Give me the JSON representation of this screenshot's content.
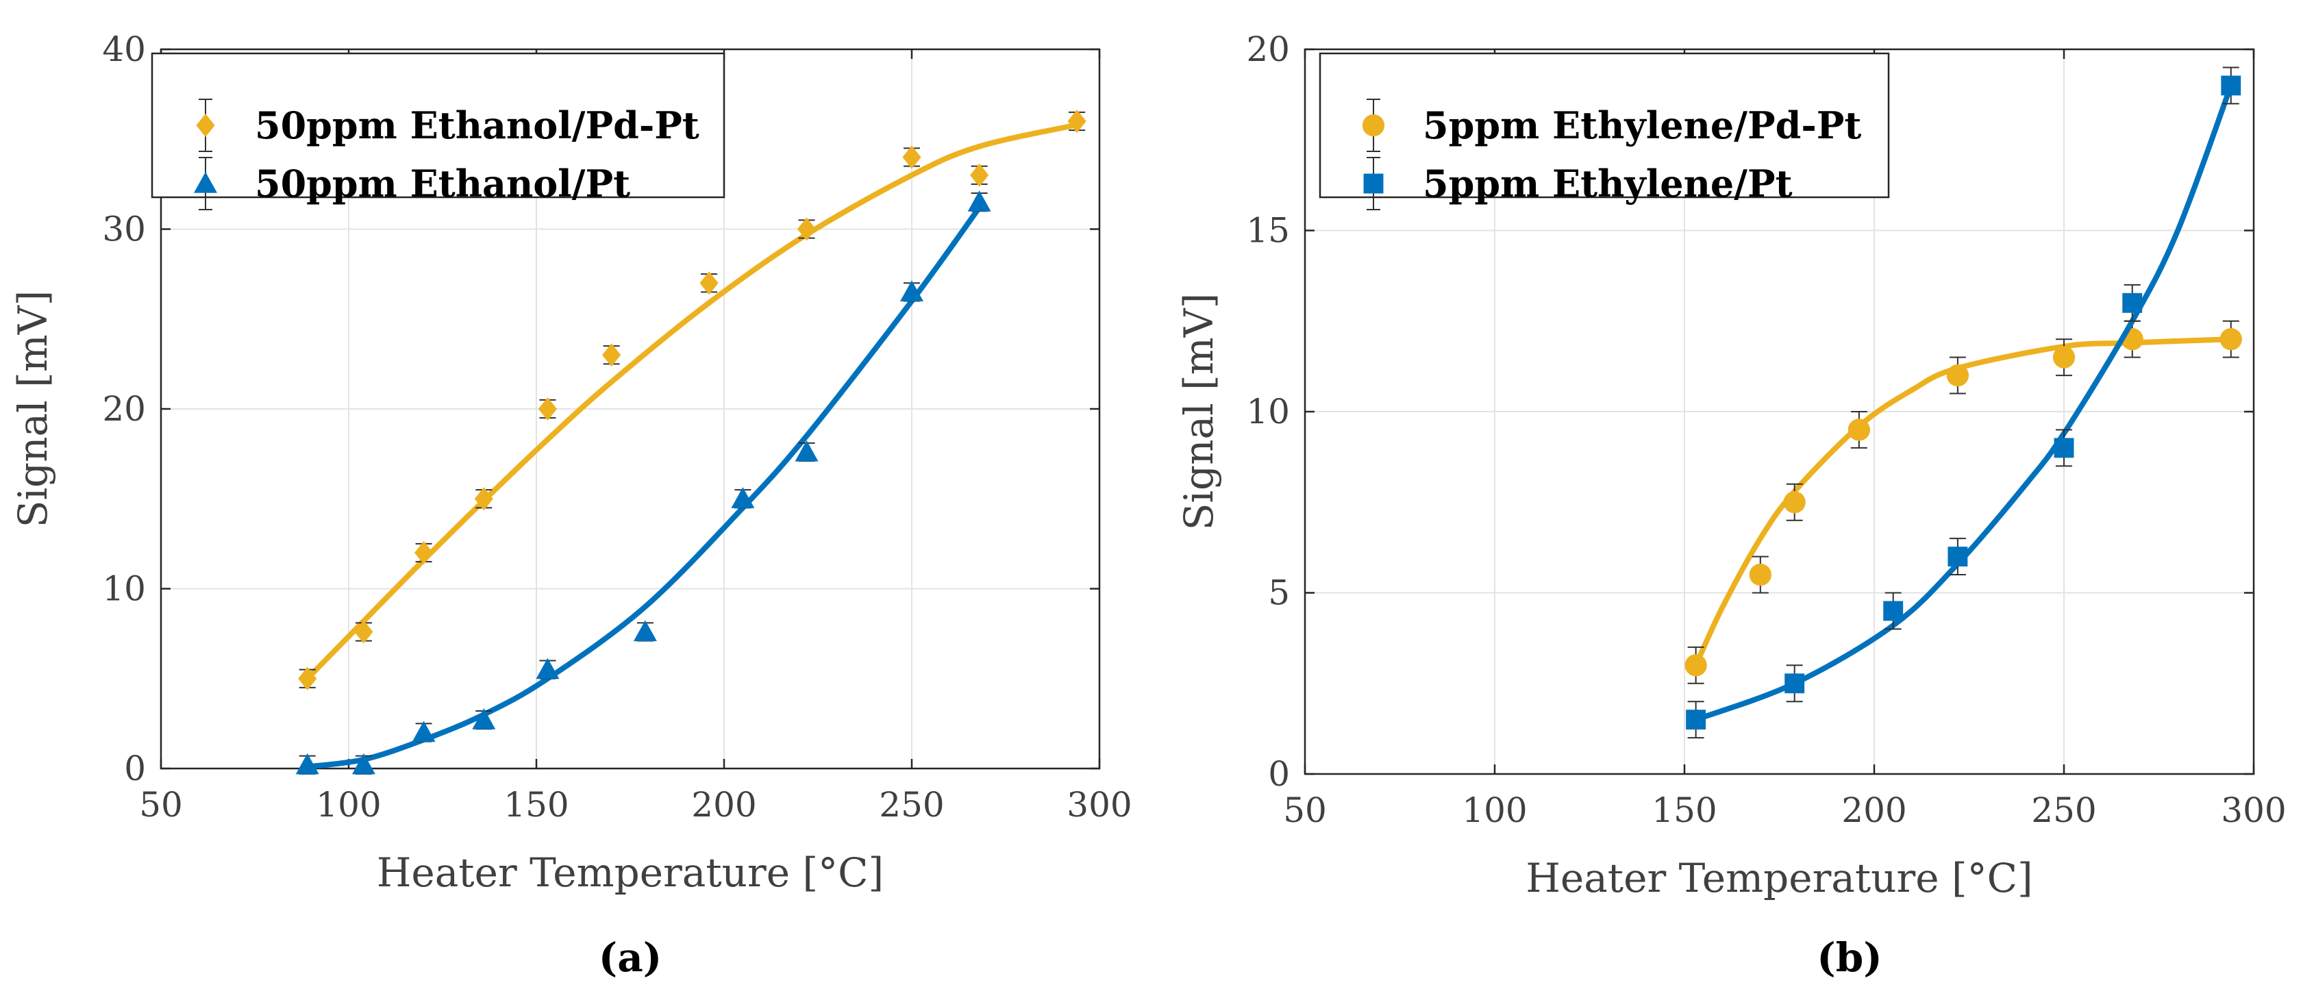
{
  "figure": {
    "panels": [
      {
        "legend": [
          {
            "label": "50ppm Ethanol/Pd-Pt",
            "color": "#EDB120",
            "marker": "diamond"
          },
          {
            "label": "50ppm Ethanol/Pt",
            "color": "#0072BD",
            "marker": "triangle"
          }
        ]
      },
      {
        "legend": [
          {
            "label": "5ppm Ethylene/Pd-Pt",
            "color": "#EDB120",
            "marker": "circle"
          },
          {
            "label": "5ppm Ethylene/Pt",
            "color": "#0072BD",
            "marker": "square"
          }
        ]
      }
    ]
  },
  "chart_data": [
    {
      "type": "scatter",
      "panel_label": "(a)",
      "xlabel": "Heater Temperature [°C]",
      "ylabel": "Signal [mV]",
      "xlim": [
        50,
        300
      ],
      "ylim": [
        0,
        40
      ],
      "xticks": [
        50,
        100,
        150,
        200,
        250,
        300
      ],
      "yticks": [
        0,
        10,
        20,
        30,
        40
      ],
      "grid": true,
      "legend_position": "top-left",
      "series": [
        {
          "name": "50ppm Ethanol/Pd-Pt",
          "color": "#EDB120",
          "marker": "diamond",
          "x": [
            89,
            104,
            120,
            136,
            153,
            170,
            196,
            222,
            250,
            268,
            294
          ],
          "y": [
            5,
            7.6,
            12,
            15,
            20,
            23,
            27,
            30,
            34,
            33,
            36
          ],
          "error": [
            0.5,
            0.5,
            0.5,
            0.5,
            0.5,
            0.5,
            0.5,
            0.5,
            0.5,
            0.5,
            0.5
          ],
          "fit": [
            [
              89,
              5
            ],
            [
              104,
              8.2
            ],
            [
              120,
              11.6
            ],
            [
              136,
              14.9
            ],
            [
              153,
              18.3
            ],
            [
              170,
              21.5
            ],
            [
              196,
              25.9
            ],
            [
              222,
              29.7
            ],
            [
              250,
              33
            ],
            [
              268,
              34.6
            ],
            [
              294,
              35.8
            ]
          ]
        },
        {
          "name": "50ppm Ethanol/Pt",
          "color": "#0072BD",
          "marker": "triangle",
          "x": [
            89,
            104,
            120,
            136,
            153,
            179,
            205,
            222,
            250,
            268
          ],
          "y": [
            0.2,
            0.2,
            2,
            2.7,
            5.5,
            7.6,
            15,
            17.6,
            26.5,
            31.5
          ],
          "error": [
            0.5,
            0.5,
            0.5,
            0.5,
            0.5,
            0.5,
            0.5,
            0.5,
            0.5,
            0.5
          ],
          "fit": [
            [
              89,
              0.1
            ],
            [
              104,
              0.5
            ],
            [
              120,
              1.6
            ],
            [
              136,
              3
            ],
            [
              153,
              5
            ],
            [
              179,
              9
            ],
            [
              205,
              14.5
            ],
            [
              222,
              18.5
            ],
            [
              250,
              26
            ],
            [
              268,
              31.2
            ]
          ]
        }
      ]
    },
    {
      "type": "scatter",
      "panel_label": "(b)",
      "xlabel": "Heater Temperature [°C]",
      "ylabel": "Signal [mV]",
      "xlim": [
        50,
        300
      ],
      "ylim": [
        0,
        20
      ],
      "xticks": [
        50,
        100,
        150,
        200,
        250,
        300
      ],
      "yticks": [
        0,
        5,
        10,
        15,
        20
      ],
      "grid": true,
      "legend_position": "top-left",
      "series": [
        {
          "name": "5ppm Ethylene/Pd-Pt",
          "color": "#EDB120",
          "marker": "circle",
          "x": [
            153,
            170,
            179,
            196,
            222,
            250,
            268,
            294
          ],
          "y": [
            3,
            5.5,
            7.5,
            9.5,
            11,
            11.5,
            12,
            12
          ],
          "error": [
            0.5,
            0.5,
            0.5,
            0.5,
            0.5,
            0.5,
            0.5,
            0.5
          ],
          "fit": [
            [
              153,
              3
            ],
            [
              160,
              4.6
            ],
            [
              170,
              6.5
            ],
            [
              179,
              7.8
            ],
            [
              196,
              9.6
            ],
            [
              210,
              10.6
            ],
            [
              222,
              11.2
            ],
            [
              250,
              11.8
            ],
            [
              268,
              11.9
            ],
            [
              294,
              12
            ]
          ]
        },
        {
          "name": "5ppm Ethylene/Pt",
          "color": "#0072BD",
          "marker": "square",
          "x": [
            153,
            179,
            205,
            222,
            250,
            268,
            294
          ],
          "y": [
            1.5,
            2.5,
            4.5,
            6,
            9,
            13,
            19
          ],
          "error": [
            0.5,
            0.5,
            0.5,
            0.5,
            0.5,
            0.5,
            0.5
          ],
          "fit": [
            [
              153,
              1.5
            ],
            [
              179,
              2.5
            ],
            [
              205,
              4.1
            ],
            [
              222,
              5.8
            ],
            [
              240,
              8
            ],
            [
              250,
              9.4
            ],
            [
              268,
              12.5
            ],
            [
              280,
              15
            ],
            [
              294,
              19
            ]
          ]
        }
      ]
    }
  ]
}
